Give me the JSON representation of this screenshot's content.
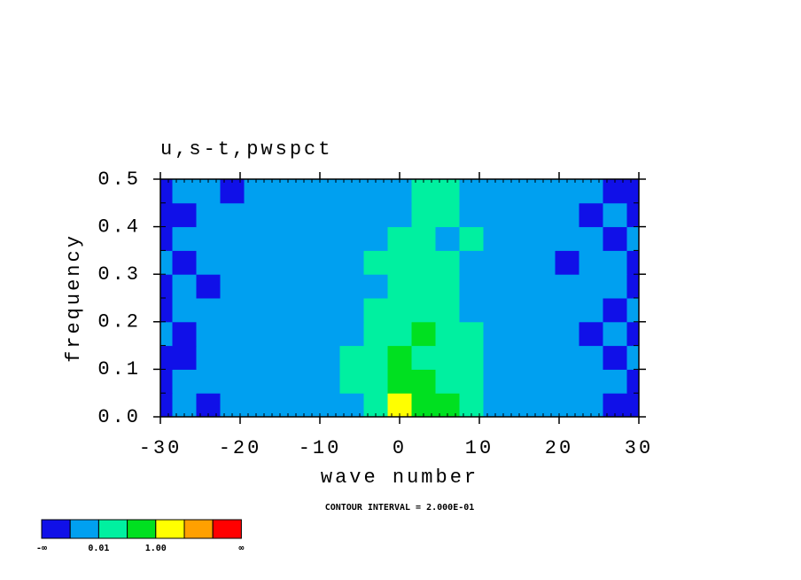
{
  "chart_data": {
    "type": "contour",
    "title": "u,s-t,pwspct",
    "x_label": "wave number",
    "y_label": "frequency",
    "annotation": "CONTOUR INTERVAL = 2.000E-01",
    "xlim": [
      -30,
      30
    ],
    "xticks": [
      -30,
      -20,
      -10,
      0,
      10,
      20,
      30
    ],
    "ylim": [
      0,
      0.5
    ],
    "yticks": [
      {
        "value": 0,
        "label": "0.0"
      },
      0.1,
      0.2,
      0.3,
      0.4,
      0.5
    ],
    "x": [
      -30,
      -27,
      -24,
      -21,
      -18,
      -15,
      -12,
      -9,
      -6,
      -3,
      0,
      3,
      6,
      9,
      12,
      15,
      18,
      21,
      24,
      27,
      30
    ],
    "y": [
      0.025,
      0.075,
      0.125,
      0.175,
      0.225,
      0.275,
      0.325,
      0.375,
      0.425,
      0.475
    ],
    "z": [
      [
        0,
        1,
        0,
        1,
        1,
        1,
        1,
        1,
        1,
        2,
        4,
        3,
        3,
        2,
        1,
        1,
        1,
        1,
        1,
        0,
        0
      ],
      [
        0,
        1,
        1,
        1,
        1,
        1,
        1,
        1,
        2,
        2,
        3,
        3,
        2,
        2,
        1,
        1,
        1,
        1,
        1,
        1,
        0
      ],
      [
        0,
        0,
        1,
        1,
        1,
        1,
        1,
        1,
        2,
        2,
        3,
        2,
        2,
        2,
        1,
        1,
        1,
        1,
        1,
        0,
        1
      ],
      [
        1,
        0,
        1,
        1,
        1,
        1,
        1,
        1,
        1,
        2,
        2,
        3,
        2,
        2,
        1,
        1,
        1,
        1,
        0,
        1,
        0
      ],
      [
        0,
        1,
        1,
        1,
        1,
        1,
        1,
        1,
        1,
        2,
        2,
        2,
        2,
        1,
        1,
        1,
        1,
        1,
        1,
        0,
        1
      ],
      [
        0,
        1,
        0,
        1,
        1,
        1,
        1,
        1,
        1,
        1,
        2,
        2,
        2,
        1,
        1,
        1,
        1,
        1,
        1,
        1,
        0
      ],
      [
        1,
        0,
        1,
        1,
        1,
        1,
        1,
        1,
        1,
        2,
        2,
        2,
        2,
        1,
        1,
        1,
        1,
        0,
        1,
        1,
        0
      ],
      [
        0,
        1,
        1,
        1,
        1,
        1,
        1,
        1,
        1,
        1,
        2,
        2,
        1,
        2,
        1,
        1,
        1,
        1,
        1,
        0,
        1
      ],
      [
        0,
        0,
        1,
        1,
        1,
        1,
        1,
        1,
        1,
        1,
        1,
        2,
        2,
        1,
        1,
        1,
        1,
        1,
        0,
        1,
        0
      ],
      [
        0,
        1,
        1,
        0,
        1,
        1,
        1,
        1,
        1,
        1,
        1,
        2,
        2,
        1,
        1,
        1,
        1,
        1,
        1,
        0,
        0
      ]
    ],
    "colors": [
      "#1010e8",
      "#00a0f0",
      "#00f0a0",
      "#00e020",
      "#ffff00",
      "#ffa000",
      "#ff0000"
    ],
    "colorbar_labels": [
      "-∞",
      null,
      "0.01",
      null,
      "1.00",
      null,
      null,
      "∞"
    ]
  }
}
